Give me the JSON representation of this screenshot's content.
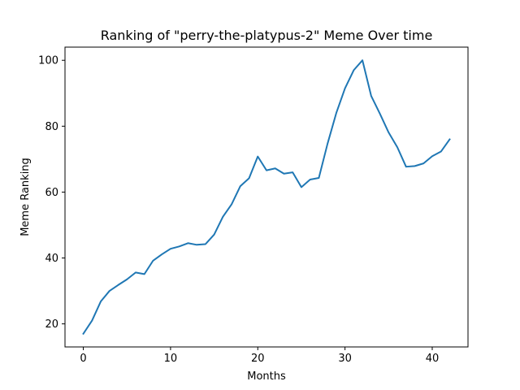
{
  "chart_data": {
    "type": "line",
    "title": "Ranking of \"perry-the-platypus-2\" Meme Over time",
    "xlabel": "Months",
    "ylabel": "Meme Ranking",
    "xlim": [
      -2.1,
      44.1
    ],
    "ylim": [
      13.0,
      104.0
    ],
    "xticks": [
      0,
      10,
      20,
      30,
      40
    ],
    "yticks": [
      20,
      40,
      60,
      80,
      100
    ],
    "grid": false,
    "line_color": "#1f77b4",
    "series": [
      {
        "x": [
          0,
          1,
          2,
          3,
          4,
          5,
          6,
          7,
          8,
          9,
          10,
          11,
          12,
          13,
          14,
          15,
          16,
          17,
          18,
          19,
          20,
          21,
          22,
          23,
          24,
          25,
          26,
          27,
          28,
          29,
          30,
          31,
          32,
          33,
          34,
          35,
          36,
          37,
          38,
          39,
          40,
          41,
          42
        ],
        "values": [
          17.0,
          21.0,
          26.8,
          30.0,
          31.8,
          33.5,
          35.6,
          35.1,
          39.2,
          41.1,
          42.8,
          43.5,
          44.5,
          44.0,
          44.2,
          47.1,
          52.5,
          56.3,
          61.8,
          64.2,
          70.8,
          66.6,
          67.2,
          65.6,
          66.0,
          61.5,
          63.8,
          64.3,
          74.7,
          84.0,
          91.5,
          97.0,
          100.0,
          89.2,
          83.8,
          78.1,
          73.6,
          67.7,
          67.9,
          68.7,
          70.9,
          72.3,
          76.0
        ]
      }
    ]
  }
}
